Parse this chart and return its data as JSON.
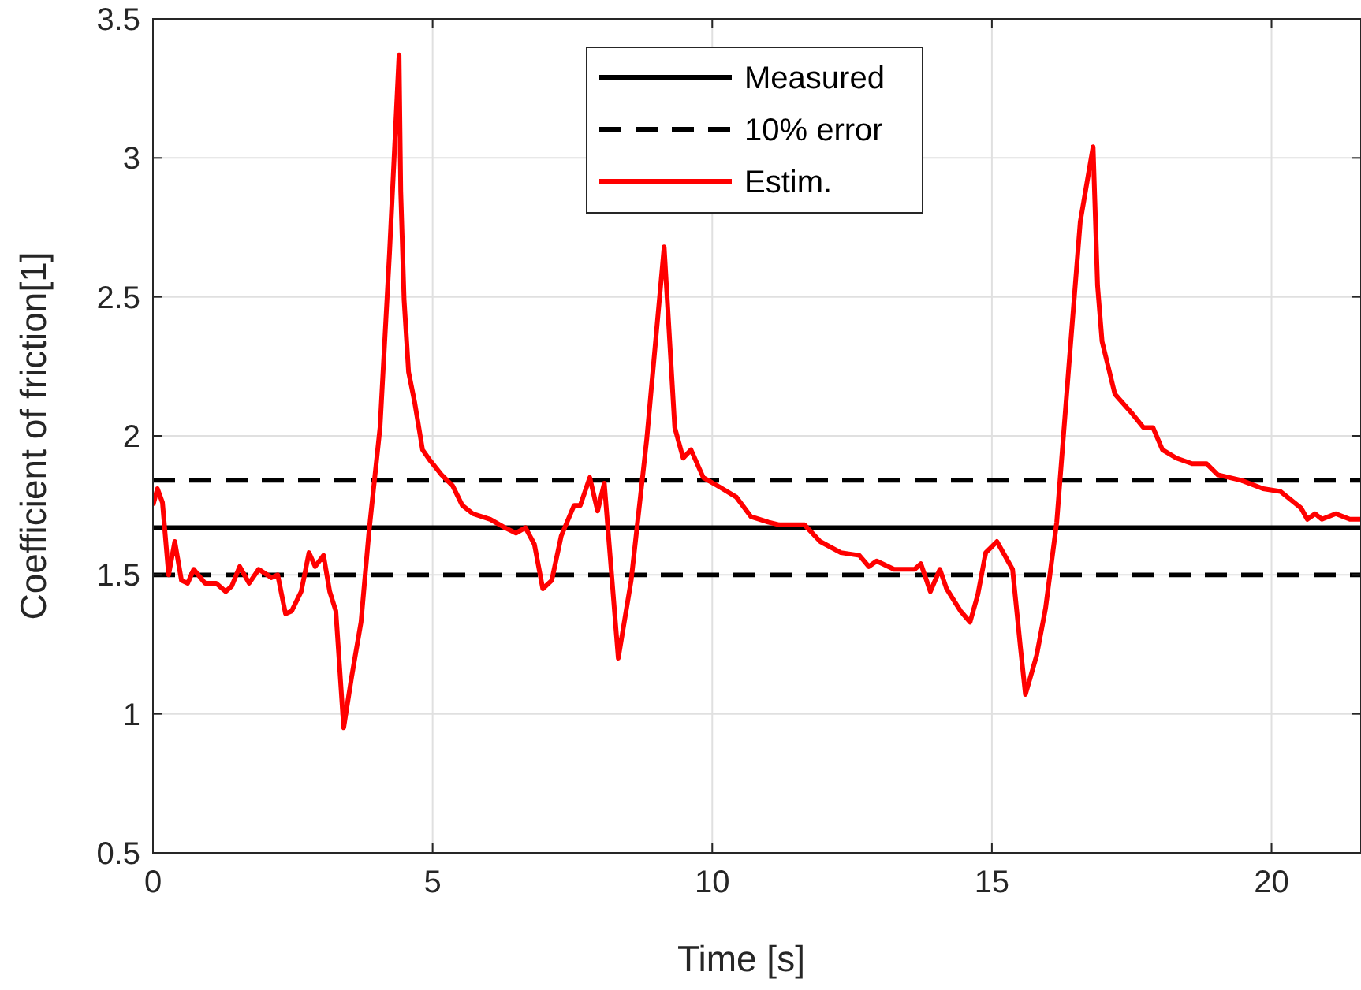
{
  "chart_data": {
    "type": "line",
    "xlabel": "Time [s]",
    "ylabel": "Coefficient of friction[1]",
    "xlim": [
      0,
      21.6
    ],
    "ylim": [
      0.5,
      3.5
    ],
    "xticks": [
      0,
      5,
      10,
      15,
      20
    ],
    "yticks": [
      0.5,
      1,
      1.5,
      2,
      2.5,
      3,
      3.5
    ],
    "grid": true,
    "legend": "top",
    "series": [
      {
        "name": "Measured",
        "color": "#000000",
        "line_style": "solid",
        "x": [
          0,
          21.6
        ],
        "values": [
          1.67,
          1.67
        ]
      },
      {
        "name": "10% error",
        "color": "#000000",
        "line_style": "dashed",
        "x": [
          0,
          21.6
        ],
        "values": [
          1.84,
          1.84
        ]
      },
      {
        "color": "#000000",
        "line_style": "dashed",
        "x": [
          0,
          21.6
        ],
        "values": [
          1.5,
          1.5
        ]
      },
      {
        "name": "Estim.",
        "color": "#ff0000",
        "line_style": "solid",
        "x": [
          0,
          0.08,
          0.17,
          0.28,
          0.39,
          0.51,
          0.62,
          0.73,
          0.93,
          1.13,
          1.3,
          1.41,
          1.55,
          1.72,
          1.89,
          2.12,
          2.23,
          2.37,
          2.48,
          2.65,
          2.79,
          2.9,
          3.05,
          3.16,
          3.27,
          3.41,
          3.55,
          3.72,
          3.86,
          4.06,
          4.23,
          4.4,
          4.43,
          4.49,
          4.57,
          4.68,
          4.82,
          4.96,
          5.16,
          5.36,
          5.53,
          5.72,
          6.03,
          6.29,
          6.49,
          6.66,
          6.82,
          6.97,
          7.13,
          7.3,
          7.53,
          7.64,
          7.81,
          7.95,
          8.07,
          8.32,
          8.55,
          8.83,
          9.14,
          9.33,
          9.48,
          9.62,
          9.84,
          10.1,
          10.43,
          10.69,
          11.0,
          11.2,
          11.65,
          11.93,
          12.3,
          12.63,
          12.8,
          12.94,
          13.25,
          13.62,
          13.73,
          13.9,
          14.07,
          14.19,
          14.44,
          14.61,
          14.75,
          14.89,
          15.09,
          15.37,
          15.51,
          15.6,
          15.8,
          15.96,
          16.16,
          16.38,
          16.58,
          16.81,
          16.89,
          16.97,
          17.2,
          17.51,
          17.71,
          17.88,
          18.05,
          18.3,
          18.58,
          18.84,
          19.04,
          19.46,
          19.85,
          20.16,
          20.53,
          20.64,
          20.78,
          20.9,
          21.15,
          21.4,
          21.6
        ],
        "values": [
          1.75,
          1.81,
          1.76,
          1.5,
          1.62,
          1.48,
          1.47,
          1.52,
          1.47,
          1.47,
          1.44,
          1.46,
          1.53,
          1.47,
          1.52,
          1.49,
          1.5,
          1.36,
          1.37,
          1.44,
          1.58,
          1.53,
          1.57,
          1.44,
          1.37,
          0.95,
          1.13,
          1.33,
          1.65,
          2.03,
          2.66,
          3.37,
          2.88,
          2.49,
          2.23,
          2.12,
          1.95,
          1.91,
          1.86,
          1.82,
          1.75,
          1.72,
          1.7,
          1.67,
          1.65,
          1.67,
          1.61,
          1.45,
          1.48,
          1.64,
          1.75,
          1.75,
          1.85,
          1.73,
          1.83,
          1.2,
          1.48,
          1.99,
          2.68,
          2.03,
          1.92,
          1.95,
          1.85,
          1.82,
          1.78,
          1.71,
          1.69,
          1.68,
          1.68,
          1.62,
          1.58,
          1.57,
          1.53,
          1.55,
          1.52,
          1.52,
          1.54,
          1.44,
          1.52,
          1.45,
          1.37,
          1.33,
          1.43,
          1.58,
          1.62,
          1.52,
          1.24,
          1.07,
          1.21,
          1.38,
          1.69,
          2.26,
          2.77,
          3.04,
          2.54,
          2.34,
          2.15,
          2.08,
          2.03,
          2.03,
          1.95,
          1.92,
          1.9,
          1.9,
          1.86,
          1.84,
          1.81,
          1.8,
          1.74,
          1.7,
          1.72,
          1.7,
          1.72,
          1.7,
          1.7
        ]
      }
    ]
  }
}
